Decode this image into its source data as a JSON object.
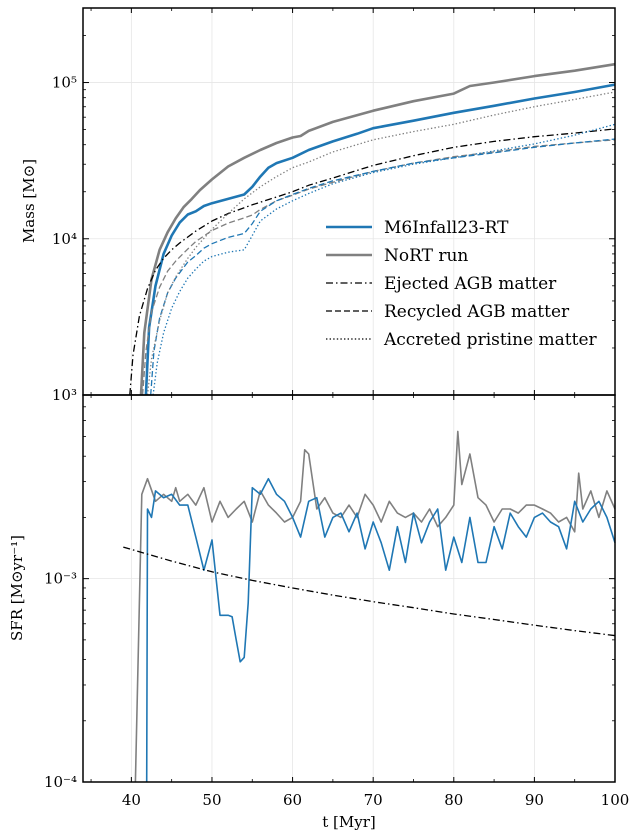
{
  "chart_data": [
    {
      "type": "line",
      "panel": "top",
      "ylabel": "Mass [M⊙]",
      "yscale": "log",
      "ylim": [
        1000,
        300000
      ],
      "xlim": [
        34,
        100
      ],
      "grid": true,
      "xticks": [
        40,
        50,
        60,
        70,
        80,
        90,
        100
      ],
      "yticks": [
        {
          "value": 1000,
          "label": "10³"
        },
        {
          "value": 10000,
          "label": "10⁴"
        },
        {
          "value": 100000,
          "label": "10⁵"
        }
      ],
      "legend_position": "lower-right",
      "legend": [
        {
          "label": "M6Infall23-RT",
          "color": "#1f77b4",
          "style": "solid",
          "width": 2.6
        },
        {
          "label": "NoRT run",
          "color": "#808080",
          "style": "solid",
          "width": 2.6
        },
        {
          "label": "Ejected AGB matter",
          "color": "#000000",
          "style": "dashdot",
          "width": 1.3
        },
        {
          "label": "Recycled AGB matter",
          "color": "#000000",
          "style": "dashed",
          "width": 1.3
        },
        {
          "label": "Accreted pristine matter",
          "color": "#000000",
          "style": "dotted",
          "width": 1.3
        }
      ],
      "series": [
        {
          "color": "#1f77b4",
          "style": "solid",
          "width": 2.6,
          "x": [
            41.8,
            42.2,
            43,
            44,
            45,
            46,
            47,
            48,
            49,
            50,
            52,
            54,
            55,
            56,
            57,
            58,
            60,
            62,
            65,
            68,
            70,
            75,
            80,
            85,
            90,
            95,
            100
          ],
          "y": [
            1000,
            2700,
            5000,
            8000,
            10500,
            12700,
            14300,
            15000,
            16200,
            16900,
            18000,
            19200,
            21500,
            25000,
            28500,
            30500,
            33000,
            37000,
            42000,
            47000,
            51000,
            57000,
            64000,
            71000,
            79000,
            87000,
            97000
          ]
        },
        {
          "color": "#808080",
          "style": "solid",
          "width": 2.6,
          "x": [
            41.2,
            41.6,
            42.5,
            43.5,
            44.5,
            45.5,
            46.5,
            47.5,
            48.5,
            50,
            52,
            54,
            56,
            58,
            60,
            61,
            62,
            65,
            70,
            75,
            80,
            82,
            85,
            90,
            95,
            100
          ],
          "y": [
            1000,
            2500,
            5500,
            8500,
            11000,
            13500,
            16000,
            18000,
            20500,
            24000,
            29000,
            33000,
            37000,
            41000,
            44500,
            45500,
            49000,
            56000,
            66000,
            76000,
            85000,
            95000,
            100000,
            110000,
            119000,
            131000
          ]
        },
        {
          "color": "#000000",
          "style": "dashdot",
          "width": 1.3,
          "x": [
            39.8,
            40.2,
            41,
            42,
            43,
            44,
            45,
            46,
            48,
            50,
            52,
            55,
            58,
            60,
            62,
            65,
            70,
            75,
            80,
            85,
            90,
            95,
            100
          ],
          "y": [
            1000,
            1800,
            3200,
            4800,
            6300,
            7500,
            8500,
            9400,
            11200,
            13000,
            14500,
            16500,
            18500,
            20000,
            22000,
            24500,
            29500,
            34000,
            38500,
            42000,
            45000,
            47500,
            50500
          ]
        },
        {
          "color": "#808080",
          "style": "dashed",
          "width": 1.3,
          "x": [
            41.4,
            41.8,
            42.5,
            43.5,
            44.5,
            45.5,
            47,
            48,
            50,
            52,
            54,
            55,
            56,
            58,
            60,
            62,
            65,
            70,
            75,
            80,
            85,
            90,
            95,
            100
          ],
          "y": [
            1000,
            1900,
            3400,
            4900,
            6200,
            7200,
            8600,
            9600,
            11300,
            12600,
            13600,
            14200,
            15400,
            17500,
            19000,
            20800,
            23000,
            27000,
            30500,
            33500,
            36000,
            39000,
            41000,
            43000
          ]
        },
        {
          "color": "#1f77b4",
          "style": "dashed",
          "width": 1.3,
          "x": [
            42.4,
            42.8,
            43.5,
            44.5,
            45.5,
            47,
            48,
            49,
            50,
            52,
            54,
            55,
            56,
            58,
            60,
            62,
            65,
            70,
            75,
            80,
            85,
            90,
            95,
            100
          ],
          "y": [
            1000,
            1900,
            3100,
            4500,
            5600,
            7100,
            7800,
            8700,
            9300,
            10200,
            10800,
            12500,
            15000,
            17500,
            19200,
            21000,
            23500,
            27000,
            30500,
            33000,
            35500,
            38500,
            41000,
            43500
          ]
        },
        {
          "color": "#808080",
          "style": "dotted",
          "width": 1.3,
          "x": [
            42.0,
            42.5,
            43.5,
            44.5,
            45.5,
            47,
            48,
            50,
            52,
            54,
            56,
            58,
            60,
            62,
            65,
            70,
            75,
            80,
            85,
            90,
            95,
            100
          ],
          "y": [
            1000,
            1700,
            3000,
            4500,
            5700,
            7500,
            8800,
            11500,
            14500,
            18000,
            21500,
            25000,
            28500,
            31000,
            36000,
            43000,
            48500,
            54000,
            62000,
            70000,
            78000,
            87000
          ]
        },
        {
          "color": "#1f77b4",
          "style": "dotted",
          "width": 1.3,
          "x": [
            42.7,
            43.2,
            44,
            45,
            46,
            47,
            48,
            49,
            50,
            52,
            54,
            55,
            56,
            58,
            60,
            62,
            65,
            70,
            75,
            80,
            85,
            90,
            95,
            100
          ],
          "y": [
            1000,
            1600,
            2500,
            3600,
            4600,
            5600,
            6400,
            7200,
            7700,
            8200,
            8500,
            10500,
            13000,
            15500,
            17500,
            19500,
            22500,
            26500,
            30000,
            33000,
            36500,
            40500,
            46000,
            54000
          ]
        }
      ]
    },
    {
      "type": "line",
      "panel": "bottom",
      "xlabel": "t [Myr]",
      "ylabel": "SFR [M⊙yr⁻¹]",
      "yscale": "log",
      "ylim": [
        0.0001,
        0.008
      ],
      "xlim": [
        34,
        100
      ],
      "grid": true,
      "xticks": [
        {
          "value": 40,
          "label": "40"
        },
        {
          "value": 50,
          "label": "50"
        },
        {
          "value": 60,
          "label": "60"
        },
        {
          "value": 70,
          "label": "70"
        },
        {
          "value": 80,
          "label": "80"
        },
        {
          "value": 90,
          "label": "90"
        },
        {
          "value": 100,
          "label": "100"
        }
      ],
      "yticks": [
        {
          "value": 0.0001,
          "label": "10⁻⁴"
        },
        {
          "value": 0.001,
          "label": "10⁻³"
        }
      ],
      "series": [
        {
          "color": "#808080",
          "style": "solid",
          "width": 1.6,
          "x": [
            40.5,
            41.3,
            42,
            43,
            44,
            45,
            45.5,
            46,
            47,
            48,
            49,
            50,
            51,
            52,
            53,
            54,
            55,
            56,
            57,
            58,
            59,
            60,
            61,
            61.5,
            62,
            63,
            64,
            65,
            66,
            67,
            68,
            69,
            70,
            71,
            72,
            73,
            74,
            75,
            76,
            77,
            78,
            79,
            80,
            80.5,
            81,
            82,
            83,
            84,
            85,
            86,
            87,
            88,
            89,
            90,
            91,
            92,
            93,
            94,
            95,
            95.5,
            96,
            97,
            98,
            99,
            100
          ],
          "y": [
            0.0001,
            0.0026,
            0.0031,
            0.0024,
            0.0026,
            0.0024,
            0.0028,
            0.0024,
            0.0026,
            0.0023,
            0.0028,
            0.0019,
            0.0024,
            0.002,
            0.0022,
            0.0024,
            0.0019,
            0.0027,
            0.0023,
            0.0021,
            0.0019,
            0.002,
            0.0024,
            0.0043,
            0.0041,
            0.0022,
            0.0025,
            0.0021,
            0.002,
            0.0023,
            0.002,
            0.0026,
            0.0023,
            0.0019,
            0.0024,
            0.0021,
            0.002,
            0.0021,
            0.0019,
            0.0022,
            0.0018,
            0.002,
            0.0023,
            0.0053,
            0.0029,
            0.0041,
            0.0025,
            0.0023,
            0.0019,
            0.0022,
            0.0022,
            0.0021,
            0.0023,
            0.0023,
            0.0022,
            0.0021,
            0.0019,
            0.002,
            0.0017,
            0.0033,
            0.0022,
            0.0027,
            0.002,
            0.0027,
            0.0022
          ]
        },
        {
          "color": "#1f77b4",
          "style": "solid",
          "width": 1.6,
          "x": [
            41.9,
            42,
            42.5,
            43,
            44,
            45,
            46,
            47,
            48,
            49,
            50,
            51,
            52,
            52.5,
            53,
            53.5,
            54,
            54.5,
            55,
            56,
            57,
            58,
            59,
            60,
            61,
            62,
            63,
            64,
            65,
            66,
            67,
            68,
            69,
            70,
            71,
            72,
            73,
            74,
            75,
            76,
            77,
            78,
            79,
            80,
            81,
            82,
            83,
            84,
            85,
            86,
            87,
            88,
            89,
            90,
            91,
            92,
            93,
            94,
            95,
            96,
            97,
            98,
            99,
            100
          ],
          "y": [
            0.0001,
            0.0022,
            0.002,
            0.0027,
            0.0025,
            0.0026,
            0.0023,
            0.0023,
            0.0016,
            0.0011,
            0.00155,
            0.00066,
            0.00066,
            0.00065,
            0.0005,
            0.00039,
            0.00041,
            0.00076,
            0.0028,
            0.0026,
            0.0031,
            0.0026,
            0.0024,
            0.002,
            0.0016,
            0.0024,
            0.0025,
            0.0016,
            0.002,
            0.0021,
            0.0017,
            0.0021,
            0.0014,
            0.0019,
            0.0015,
            0.0011,
            0.0018,
            0.0012,
            0.0021,
            0.0015,
            0.0019,
            0.0022,
            0.0011,
            0.0016,
            0.0012,
            0.002,
            0.0012,
            0.0012,
            0.0018,
            0.0014,
            0.0021,
            0.0018,
            0.0016,
            0.002,
            0.0021,
            0.0019,
            0.0018,
            0.0014,
            0.0024,
            0.0019,
            0.0022,
            0.0024,
            0.002,
            0.0015
          ]
        },
        {
          "color": "#000000",
          "style": "dashdot",
          "width": 1.3,
          "x": [
            39,
            42,
            45,
            50,
            55,
            60,
            65,
            70,
            75,
            80,
            85,
            90,
            95,
            100
          ],
          "y": [
            0.00143,
            0.00132,
            0.00122,
            0.00108,
            0.00098,
            0.0009,
            0.00083,
            0.00077,
            0.00072,
            0.00067,
            0.00063,
            0.00059,
            0.000555,
            0.000525
          ]
        }
      ]
    }
  ]
}
